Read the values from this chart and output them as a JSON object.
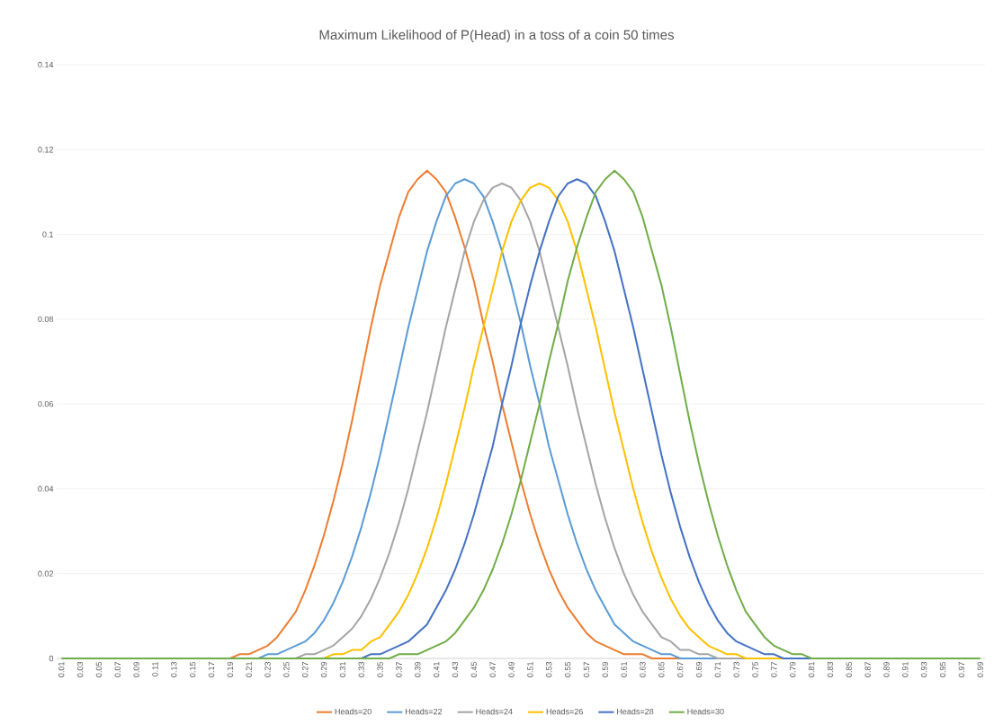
{
  "chart_data": {
    "type": "line",
    "title": "Maximum Likelihood of P(Head) in a toss of a coin 50 times",
    "categories": [
      "0.01",
      null,
      "0.03",
      null,
      "0.05",
      null,
      "0.07",
      null,
      "0.09",
      null,
      "0.11",
      null,
      "0.13",
      null,
      "0.15",
      null,
      "0.17",
      null,
      "0.19",
      null,
      "0.21",
      null,
      "0.23",
      null,
      "0.25",
      null,
      "0.27",
      null,
      "0.29",
      null,
      "0.31",
      null,
      "0.33",
      null,
      "0.35",
      null,
      "0.37",
      null,
      "0.39",
      null,
      "0.41",
      null,
      "0.43",
      null,
      "0.45",
      null,
      "0.47",
      null,
      "0.49",
      null,
      "0.51",
      null,
      "0.53",
      null,
      "0.55",
      null,
      "0.57",
      null,
      "0.59",
      null,
      "0.61",
      null,
      "0.63",
      null,
      "0.65",
      null,
      "0.67",
      null,
      "0.69",
      null,
      "0.71",
      null,
      "0.73",
      null,
      "0.75",
      null,
      "0.77",
      null,
      "0.79",
      null,
      "0.81",
      null,
      "0.83",
      null,
      "0.85",
      null,
      "0.87",
      null,
      "0.89",
      null,
      "0.91",
      null,
      "0.93",
      null,
      "0.95",
      null,
      "0.97",
      null,
      "0.99"
    ],
    "series": [
      {
        "name": "Heads=20",
        "color": "#ed7d31",
        "values": [
          null,
          null,
          null,
          null,
          null,
          null,
          null,
          null,
          null,
          null,
          null,
          null,
          null,
          null,
          null,
          null,
          null,
          null,
          0,
          0.001,
          0.001,
          0.002,
          0.003,
          0.005,
          0.008,
          0.011,
          0.016,
          0.022,
          0.029,
          0.037,
          0.046,
          0.056,
          0.067,
          0.078,
          0.088,
          0.096,
          0.104,
          0.11,
          0.113,
          0.115,
          0.113,
          0.11,
          0.104,
          0.097,
          0.089,
          0.079,
          0.07,
          0.06,
          0.051,
          0.042,
          0.034,
          0.027,
          0.021,
          0.016,
          0.012,
          0.009,
          0.006,
          0.004,
          0.003,
          0.002,
          0.001,
          0.001,
          0.001,
          0,
          0,
          0,
          0,
          null,
          null,
          null,
          null,
          null,
          null,
          null,
          null,
          null,
          null,
          null,
          null,
          null,
          null,
          null,
          null,
          null,
          null,
          null,
          null,
          null,
          null,
          null,
          null,
          null,
          null,
          null,
          null,
          null,
          null,
          null,
          null
        ]
      },
      {
        "name": "Heads=22",
        "color": "#5b9bd5",
        "values": [
          null,
          null,
          null,
          null,
          null,
          null,
          null,
          null,
          null,
          null,
          null,
          null,
          null,
          null,
          null,
          null,
          null,
          null,
          null,
          null,
          null,
          0,
          0.001,
          0.001,
          0.002,
          0.003,
          0.004,
          0.006,
          0.009,
          0.013,
          0.018,
          0.024,
          0.031,
          0.039,
          0.048,
          0.058,
          0.068,
          0.078,
          0.087,
          0.096,
          0.103,
          0.109,
          0.112,
          0.113,
          0.112,
          0.109,
          0.103,
          0.096,
          0.088,
          0.079,
          0.069,
          0.06,
          0.05,
          0.042,
          0.034,
          0.027,
          0.021,
          0.016,
          0.012,
          0.008,
          0.006,
          0.004,
          0.003,
          0.002,
          0.001,
          0.001,
          0,
          0,
          0,
          0,
          0,
          null,
          null,
          null,
          null,
          null,
          null,
          null,
          null,
          null,
          null,
          null,
          null,
          null,
          null,
          null,
          null,
          null,
          null,
          null,
          null,
          null,
          null,
          null,
          null,
          null,
          null,
          null,
          null
        ]
      },
      {
        "name": "Heads=24",
        "color": "#a5a5a5",
        "values": [
          null,
          null,
          null,
          null,
          null,
          null,
          null,
          null,
          null,
          null,
          null,
          null,
          null,
          null,
          null,
          null,
          null,
          null,
          null,
          null,
          null,
          null,
          null,
          null,
          null,
          0,
          0.001,
          0.001,
          0.002,
          0.003,
          0.005,
          0.007,
          0.01,
          0.014,
          0.019,
          0.025,
          0.032,
          0.04,
          0.049,
          0.058,
          0.068,
          0.078,
          0.087,
          0.096,
          0.103,
          0.108,
          0.111,
          0.112,
          0.111,
          0.108,
          0.103,
          0.096,
          0.087,
          0.078,
          0.069,
          0.059,
          0.05,
          0.041,
          0.033,
          0.026,
          0.02,
          0.015,
          0.011,
          0.008,
          0.005,
          0.004,
          0.002,
          0.002,
          0.001,
          0.001,
          0,
          0,
          0,
          0,
          null,
          null,
          null,
          null,
          null,
          null,
          null,
          null,
          null,
          null,
          null,
          null,
          null,
          null,
          null,
          null,
          null,
          null,
          null,
          null,
          null,
          null,
          null,
          null,
          null
        ]
      },
      {
        "name": "Heads=26",
        "color": "#ffc000",
        "values": [
          null,
          null,
          null,
          null,
          null,
          null,
          null,
          null,
          null,
          null,
          null,
          null,
          null,
          null,
          null,
          null,
          null,
          null,
          null,
          null,
          null,
          null,
          null,
          null,
          null,
          null,
          null,
          null,
          0,
          0.001,
          0.001,
          0.002,
          0.002,
          0.004,
          0.005,
          0.008,
          0.011,
          0.015,
          0.02,
          0.026,
          0.033,
          0.041,
          0.05,
          0.059,
          0.069,
          0.078,
          0.087,
          0.096,
          0.103,
          0.108,
          0.111,
          0.112,
          0.111,
          0.108,
          0.103,
          0.096,
          0.087,
          0.078,
          0.068,
          0.058,
          0.049,
          0.04,
          0.032,
          0.025,
          0.019,
          0.014,
          0.01,
          0.007,
          0.005,
          0.003,
          0.002,
          0.001,
          0.001,
          0,
          0,
          0,
          0,
          0,
          null,
          null,
          null,
          null,
          null,
          null,
          null,
          null,
          null,
          null,
          null,
          null,
          null,
          null,
          null,
          null,
          null,
          null,
          null,
          null,
          null
        ]
      },
      {
        "name": "Heads=28",
        "color": "#4472c4",
        "values": [
          null,
          null,
          null,
          null,
          null,
          null,
          null,
          null,
          null,
          null,
          null,
          null,
          null,
          null,
          null,
          null,
          null,
          null,
          null,
          null,
          null,
          null,
          null,
          null,
          null,
          null,
          null,
          null,
          null,
          null,
          null,
          null,
          0,
          0.001,
          0.001,
          0.002,
          0.003,
          0.004,
          0.006,
          0.008,
          0.012,
          0.016,
          0.021,
          0.027,
          0.034,
          0.042,
          0.05,
          0.06,
          0.069,
          0.079,
          0.088,
          0.096,
          0.103,
          0.109,
          0.112,
          0.113,
          0.112,
          0.109,
          0.103,
          0.096,
          0.087,
          0.078,
          0.068,
          0.058,
          0.048,
          0.039,
          0.031,
          0.024,
          0.018,
          0.013,
          0.009,
          0.006,
          0.004,
          0.003,
          0.002,
          0.001,
          0.001,
          0,
          0,
          0,
          0,
          null,
          null,
          null,
          null,
          null,
          null,
          null,
          null,
          null,
          null,
          null,
          null,
          null,
          null,
          null,
          null,
          null,
          null
        ]
      },
      {
        "name": "Heads=30",
        "color": "#70ad47",
        "values": [
          0,
          0,
          0,
          0,
          0,
          0,
          0,
          0,
          0,
          0,
          0,
          0,
          0,
          0,
          0,
          0,
          0,
          0,
          0,
          0,
          0,
          0,
          0,
          0,
          0,
          0,
          0,
          0,
          0,
          0,
          0,
          0,
          0,
          0,
          0,
          0,
          0.001,
          0.001,
          0.001,
          0.002,
          0.003,
          0.004,
          0.006,
          0.009,
          0.012,
          0.016,
          0.021,
          0.027,
          0.034,
          0.042,
          0.051,
          0.06,
          0.07,
          0.079,
          0.089,
          0.097,
          0.104,
          0.11,
          0.113,
          0.115,
          0.113,
          0.11,
          0.104,
          0.096,
          0.088,
          0.078,
          0.067,
          0.056,
          0.046,
          0.037,
          0.029,
          0.022,
          0.016,
          0.011,
          0.008,
          0.005,
          0.003,
          0.002,
          0.001,
          0.001,
          0,
          0,
          0,
          0,
          0,
          0,
          0,
          0,
          0,
          0,
          0,
          0,
          0,
          0,
          0,
          0,
          0,
          0,
          0
        ]
      }
    ],
    "ylim": [
      0,
      0.14
    ],
    "yticks": [
      0,
      0.02,
      0.04,
      0.06,
      0.08,
      0.1,
      0.12,
      0.14
    ],
    "grid": "y",
    "legend": "bottom",
    "marker": "none",
    "line_style": "solid"
  }
}
